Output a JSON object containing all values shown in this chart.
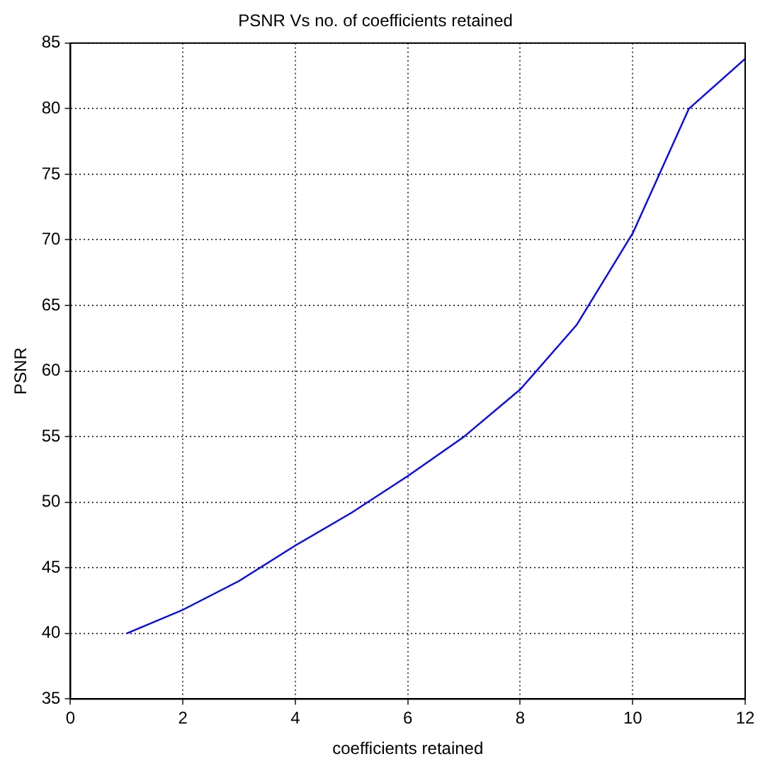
{
  "chart_data": {
    "type": "line",
    "title": "PSNR Vs no. of coefficients retained",
    "xlabel": "coefficients retained",
    "ylabel": "PSNR",
    "x": [
      1,
      2,
      3,
      4,
      5,
      6,
      7,
      8,
      9,
      10,
      11,
      12
    ],
    "series": [
      {
        "color": "#0000ff",
        "values": [
          40,
          41.8,
          44,
          46.7,
          49.2,
          52,
          55,
          58.6,
          63.5,
          70.5,
          80,
          83.8
        ]
      }
    ],
    "xlim": [
      0,
      12
    ],
    "xticks": [
      0,
      2,
      4,
      6,
      8,
      10,
      12
    ],
    "ylim": [
      35,
      85
    ],
    "yticks": [
      35,
      40,
      45,
      50,
      55,
      60,
      65,
      70,
      75,
      80,
      85
    ],
    "grid": true,
    "legend": false,
    "marker": "none",
    "line_style": "solid"
  }
}
